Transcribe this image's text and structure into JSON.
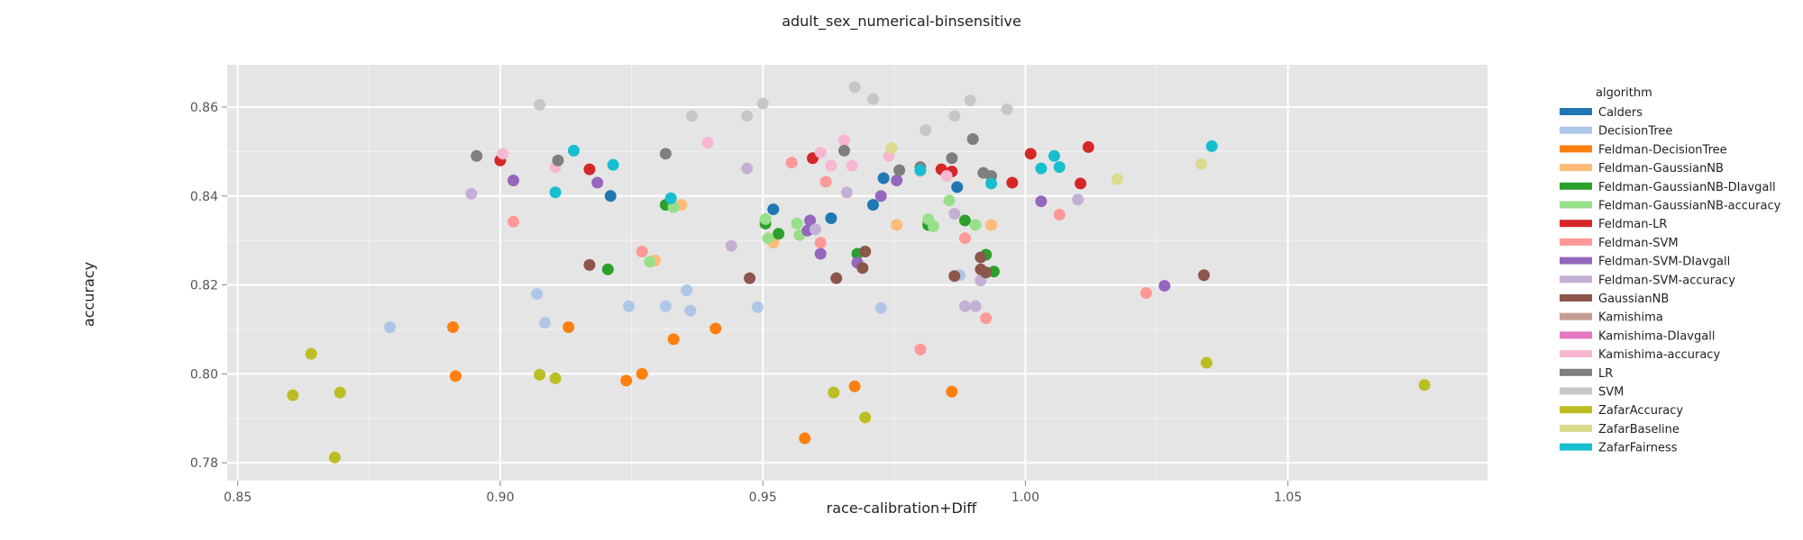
{
  "chart_data": {
    "type": "scatter",
    "title": "adult_sex_numerical-binsensitive",
    "xlabel": "race-calibration+Diff",
    "ylabel": "accuracy",
    "xlim": [
      0.848,
      1.088
    ],
    "ylim": [
      0.776,
      0.8695
    ],
    "x_ticks": [
      0.85,
      0.9,
      0.95,
      1.0,
      1.05
    ],
    "x_tick_labels": [
      "0.85",
      "0.90",
      "0.95",
      "1.00",
      "1.05"
    ],
    "y_ticks": [
      0.78,
      0.8,
      0.82,
      0.84,
      0.86
    ],
    "y_tick_labels": [
      "0.78",
      "0.80",
      "0.82",
      "0.84",
      "0.86"
    ],
    "grid": true,
    "legend_title": "algorithm",
    "legend_position": "right",
    "series": [
      {
        "name": "Calders",
        "color": "#1f77b4",
        "points": [
          [
            0.952,
            0.837
          ],
          [
            0.921,
            0.84
          ],
          [
            0.963,
            0.835
          ],
          [
            0.971,
            0.838
          ],
          [
            0.987,
            0.842
          ],
          [
            0.973,
            0.844
          ]
        ]
      },
      {
        "name": "DecisionTree",
        "color": "#aec7e8",
        "points": [
          [
            0.879,
            0.8105
          ],
          [
            0.907,
            0.818
          ],
          [
            0.9085,
            0.8115
          ],
          [
            0.9245,
            0.8152
          ],
          [
            0.9315,
            0.8152
          ],
          [
            0.9355,
            0.8188
          ],
          [
            0.9362,
            0.8142
          ],
          [
            0.949,
            0.815
          ],
          [
            0.9725,
            0.8148
          ],
          [
            0.9875,
            0.8222
          ]
        ]
      },
      {
        "name": "Feldman-DecisionTree",
        "color": "#ff7f0e",
        "points": [
          [
            0.891,
            0.8105
          ],
          [
            0.8915,
            0.7995
          ],
          [
            0.913,
            0.8105
          ],
          [
            0.924,
            0.7985
          ],
          [
            0.927,
            0.8
          ],
          [
            0.933,
            0.8078
          ],
          [
            0.941,
            0.8102
          ],
          [
            0.958,
            0.7855
          ],
          [
            0.9675,
            0.7972
          ],
          [
            0.986,
            0.796
          ]
        ]
      },
      {
        "name": "Feldman-GaussianNB",
        "color": "#ffbb78",
        "points": [
          [
            0.9295,
            0.8255
          ],
          [
            0.9345,
            0.838
          ],
          [
            0.952,
            0.8295
          ],
          [
            0.9755,
            0.8335
          ],
          [
            0.9815,
            0.834
          ],
          [
            0.9935,
            0.8335
          ]
        ]
      },
      {
        "name": "Feldman-GaussianNB-DIavgall",
        "color": "#2ca02c",
        "points": [
          [
            0.9205,
            0.8235
          ],
          [
            0.9315,
            0.838
          ],
          [
            0.9505,
            0.8338
          ],
          [
            0.953,
            0.8315
          ],
          [
            0.968,
            0.827
          ],
          [
            0.9815,
            0.8335
          ],
          [
            0.9885,
            0.8345
          ],
          [
            0.9925,
            0.8268
          ],
          [
            0.994,
            0.823
          ]
        ]
      },
      {
        "name": "Feldman-GaussianNB-accuracy",
        "color": "#98df8a",
        "points": [
          [
            0.9285,
            0.8252
          ],
          [
            0.933,
            0.8375
          ],
          [
            0.9505,
            0.8348
          ],
          [
            0.951,
            0.8305
          ],
          [
            0.9565,
            0.8338
          ],
          [
            0.957,
            0.8312
          ],
          [
            0.9815,
            0.8348
          ],
          [
            0.9825,
            0.8332
          ],
          [
            0.9855,
            0.839
          ],
          [
            0.9905,
            0.8335
          ]
        ]
      },
      {
        "name": "Feldman-LR",
        "color": "#d62728",
        "points": [
          [
            0.9,
            0.848
          ],
          [
            0.917,
            0.846
          ],
          [
            0.9595,
            0.8485
          ],
          [
            0.984,
            0.846
          ],
          [
            0.986,
            0.8455
          ],
          [
            0.9975,
            0.843
          ],
          [
            1.001,
            0.8495
          ],
          [
            1.0105,
            0.8428
          ],
          [
            1.012,
            0.851
          ]
        ]
      },
      {
        "name": "Feldman-SVM",
        "color": "#ff9896",
        "points": [
          [
            0.9025,
            0.8342
          ],
          [
            0.927,
            0.8275
          ],
          [
            0.9555,
            0.8475
          ],
          [
            0.961,
            0.8295
          ],
          [
            0.962,
            0.8432
          ],
          [
            0.98,
            0.8055
          ],
          [
            0.9885,
            0.8305
          ],
          [
            0.9925,
            0.8125
          ],
          [
            1.0065,
            0.8358
          ],
          [
            1.023,
            0.8182
          ]
        ]
      },
      {
        "name": "Feldman-SVM-DIavgall",
        "color": "#9467bd",
        "points": [
          [
            0.9025,
            0.8435
          ],
          [
            0.9185,
            0.843
          ],
          [
            0.959,
            0.8345
          ],
          [
            0.9585,
            0.8322
          ],
          [
            0.961,
            0.827
          ],
          [
            0.968,
            0.825
          ],
          [
            0.9725,
            0.84
          ],
          [
            0.9755,
            0.8435
          ],
          [
            1.003,
            0.8388
          ],
          [
            1.0265,
            0.8198
          ]
        ]
      },
      {
        "name": "Feldman-SVM-accuracy",
        "color": "#c5b0d5",
        "points": [
          [
            0.8945,
            0.8405
          ],
          [
            0.944,
            0.8288
          ],
          [
            0.947,
            0.8462
          ],
          [
            0.96,
            0.8325
          ],
          [
            0.966,
            0.8408
          ],
          [
            0.9865,
            0.836
          ],
          [
            0.9885,
            0.8152
          ],
          [
            0.9905,
            0.8152
          ],
          [
            0.9915,
            0.821
          ],
          [
            1.01,
            0.8392
          ]
        ]
      },
      {
        "name": "GaussianNB",
        "color": "#8c564b",
        "points": [
          [
            0.917,
            0.8245
          ],
          [
            0.9475,
            0.8215
          ],
          [
            0.964,
            0.8215
          ],
          [
            0.969,
            0.8238
          ],
          [
            0.9695,
            0.8275
          ],
          [
            0.9865,
            0.822
          ],
          [
            0.9915,
            0.8262
          ],
          [
            0.9915,
            0.8235
          ],
          [
            0.9925,
            0.8228
          ],
          [
            1.034,
            0.8222
          ]
        ]
      },
      {
        "name": "Kamishima",
        "color": "#c49c94",
        "points": []
      },
      {
        "name": "Kamishima-DIavgall",
        "color": "#e377c2",
        "points": []
      },
      {
        "name": "Kamishima-accuracy",
        "color": "#f7b6d2",
        "points": [
          [
            0.9005,
            0.8495
          ],
          [
            0.9105,
            0.8465
          ],
          [
            0.9395,
            0.852
          ],
          [
            0.961,
            0.8498
          ],
          [
            0.963,
            0.8468
          ],
          [
            0.9655,
            0.8525
          ],
          [
            0.967,
            0.8468
          ],
          [
            0.974,
            0.849
          ],
          [
            0.98,
            0.8455
          ],
          [
            0.985,
            0.8445
          ]
        ]
      },
      {
        "name": "LR",
        "color": "#7f7f7f",
        "points": [
          [
            0.8955,
            0.849
          ],
          [
            0.911,
            0.848
          ],
          [
            0.9315,
            0.8495
          ],
          [
            0.9655,
            0.8502
          ],
          [
            0.976,
            0.8458
          ],
          [
            0.98,
            0.8465
          ],
          [
            0.986,
            0.8485
          ],
          [
            0.99,
            0.8528
          ],
          [
            0.992,
            0.8452
          ],
          [
            0.9935,
            0.8445
          ]
        ]
      },
      {
        "name": "SVM",
        "color": "#c7c7c7",
        "points": [
          [
            0.9075,
            0.8605
          ],
          [
            0.9365,
            0.858
          ],
          [
            0.947,
            0.858
          ],
          [
            0.95,
            0.8608
          ],
          [
            0.9675,
            0.8645
          ],
          [
            0.971,
            0.8618
          ],
          [
            0.981,
            0.8548
          ],
          [
            0.9865,
            0.858
          ],
          [
            0.9895,
            0.8615
          ],
          [
            0.9965,
            0.8595
          ]
        ]
      },
      {
        "name": "ZafarAccuracy",
        "color": "#bcbd22",
        "points": [
          [
            0.8605,
            0.7952
          ],
          [
            0.864,
            0.8045
          ],
          [
            0.8685,
            0.7812
          ],
          [
            0.8695,
            0.7958
          ],
          [
            0.9075,
            0.7998
          ],
          [
            0.9105,
            0.799
          ],
          [
            0.9635,
            0.7958
          ],
          [
            0.9695,
            0.7902
          ],
          [
            1.0345,
            0.8025
          ],
          [
            1.076,
            0.7975
          ]
        ]
      },
      {
        "name": "ZafarBaseline",
        "color": "#dbdb8d",
        "points": [
          [
            0.9745,
            0.8508
          ],
          [
            1.0175,
            0.8438
          ],
          [
            1.0335,
            0.8472
          ]
        ]
      },
      {
        "name": "ZafarFairness",
        "color": "#17becf",
        "points": [
          [
            0.9105,
            0.8408
          ],
          [
            0.914,
            0.8502
          ],
          [
            0.9215,
            0.847
          ],
          [
            0.9325,
            0.8395
          ],
          [
            0.98,
            0.8458
          ],
          [
            0.9935,
            0.8428
          ],
          [
            1.003,
            0.8462
          ],
          [
            1.0055,
            0.849
          ],
          [
            1.0065,
            0.8465
          ],
          [
            1.0355,
            0.8512
          ]
        ]
      }
    ]
  }
}
